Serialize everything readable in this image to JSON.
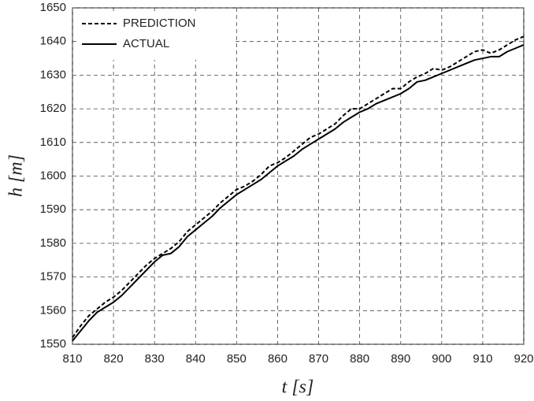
{
  "chart_data": {
    "type": "line",
    "xlabel": "t [s]",
    "ylabel": "h [m]",
    "x": [
      810,
      812,
      814,
      816,
      818,
      820,
      822,
      824,
      826,
      828,
      830,
      832,
      834,
      836,
      838,
      840,
      842,
      844,
      846,
      848,
      850,
      852,
      854,
      856,
      858,
      860,
      862,
      864,
      866,
      868,
      870,
      872,
      874,
      876,
      878,
      880,
      882,
      884,
      886,
      888,
      890,
      892,
      894,
      896,
      898,
      900,
      902,
      904,
      906,
      908,
      910,
      912,
      914,
      916,
      918,
      920
    ],
    "series": [
      {
        "name": "PREDICTION",
        "color": "#000000",
        "dash": true,
        "values": [
          1552,
          1555.5,
          1558.5,
          1560.5,
          1562.5,
          1564,
          1566,
          1568.5,
          1571,
          1573.5,
          1575.5,
          1577,
          1578.5,
          1580.5,
          1583.5,
          1585.5,
          1587.5,
          1589.5,
          1592,
          1594,
          1596,
          1597,
          1598.5,
          1600.5,
          1603,
          1604,
          1605.5,
          1607.5,
          1609.5,
          1611.5,
          1612.5,
          1614,
          1615.5,
          1618,
          1620,
          1620,
          1621.5,
          1623,
          1624.5,
          1626,
          1626,
          1628,
          1629.5,
          1630.5,
          1632,
          1631.5,
          1632.5,
          1634,
          1635.5,
          1637,
          1637.5,
          1636.5,
          1637.5,
          1639,
          1640.5,
          1641.5
        ]
      },
      {
        "name": "ACTUAL",
        "color": "#000000",
        "dash": false,
        "values": [
          1551,
          1554,
          1557,
          1559.5,
          1561,
          1562.5,
          1564.5,
          1567,
          1569.5,
          1572,
          1574.5,
          1576.5,
          1577,
          1579,
          1582,
          1584,
          1586,
          1588,
          1590.5,
          1592.5,
          1594.5,
          1596,
          1597.5,
          1599,
          1601,
          1603,
          1604.5,
          1606,
          1608,
          1609.5,
          1611,
          1612.5,
          1614,
          1616,
          1617.5,
          1619,
          1620,
          1621.5,
          1622.5,
          1623.5,
          1624.5,
          1626,
          1628,
          1628.5,
          1629.5,
          1630.5,
          1631.5,
          1632.5,
          1633.5,
          1634.5,
          1635,
          1635.5,
          1635.5,
          1637,
          1638,
          1639
        ]
      }
    ],
    "xlim": [
      810,
      920
    ],
    "xticks": [
      810,
      820,
      830,
      840,
      850,
      860,
      870,
      880,
      890,
      900,
      910,
      920
    ],
    "ylim": [
      1550,
      1650
    ],
    "yticks": [
      1550,
      1560,
      1570,
      1580,
      1590,
      1600,
      1610,
      1620,
      1630,
      1640,
      1650
    ],
    "grid": true,
    "legend": "upper left"
  }
}
